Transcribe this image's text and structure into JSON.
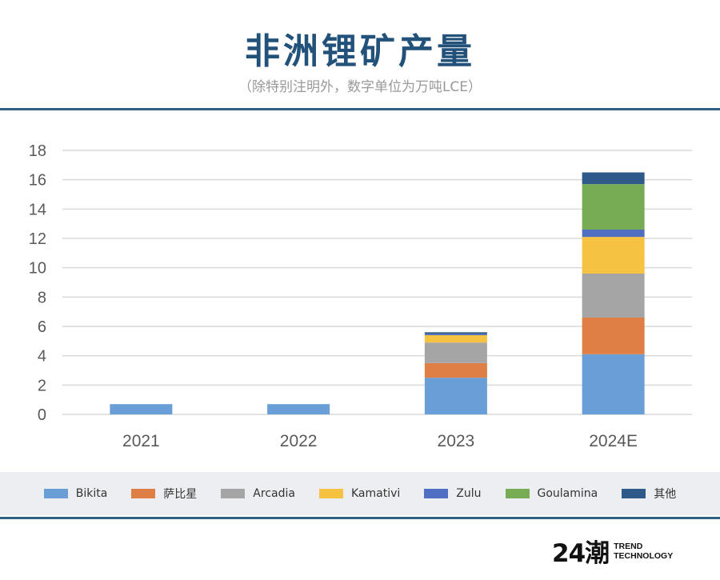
{
  "header": {
    "title": "非洲锂矿产量",
    "subtitle": "（除特别注明外，数字单位为万吨LCE）"
  },
  "logo": {
    "mark": "24潮",
    "line1": "TREND",
    "line2": "TECHNOLOGY"
  },
  "chart_data": {
    "type": "bar",
    "stacked": true,
    "categories": [
      "2021",
      "2022",
      "2023",
      "2024E"
    ],
    "series": [
      {
        "name": "Bikita",
        "color": "#6a9ed6",
        "values": [
          0.7,
          0.7,
          2.5,
          4.1
        ]
      },
      {
        "name": "萨比星",
        "color": "#e07f45",
        "values": [
          0,
          0,
          1.0,
          2.5
        ]
      },
      {
        "name": "Arcadia",
        "color": "#a5a5a5",
        "values": [
          0,
          0,
          1.4,
          3.0
        ]
      },
      {
        "name": "Kamativi",
        "color": "#f6c242",
        "values": [
          0,
          0,
          0.5,
          2.5
        ]
      },
      {
        "name": "Zulu",
        "color": "#4f6fc2",
        "values": [
          0,
          0,
          0.1,
          0.5
        ]
      },
      {
        "name": "Goulamina",
        "color": "#78ac54",
        "values": [
          0,
          0,
          0,
          3.1
        ]
      },
      {
        "name": "其他",
        "color": "#2e5a8a",
        "values": [
          0,
          0,
          0.1,
          0.8
        ]
      }
    ],
    "yticks": [
      "0",
      "2",
      "4",
      "6",
      "8",
      "10",
      "12",
      "14",
      "16",
      "18"
    ],
    "ylim": [
      0,
      18
    ],
    "grid": true,
    "legend": "bottom"
  }
}
